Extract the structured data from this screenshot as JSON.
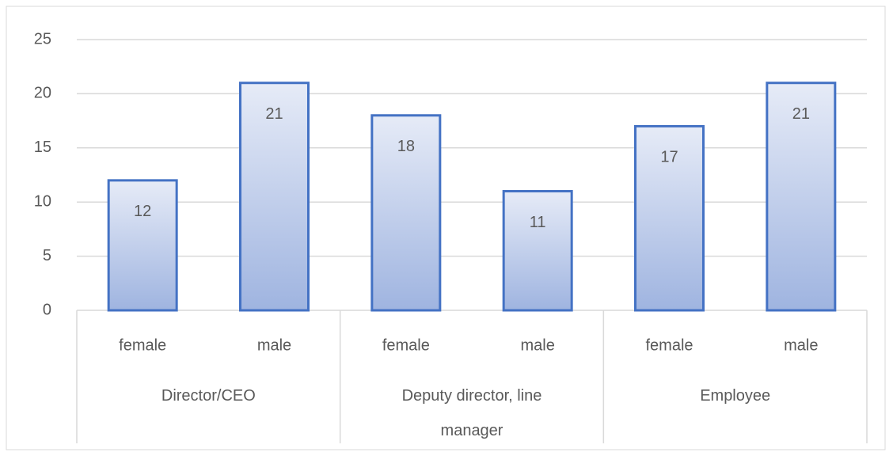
{
  "chart_data": {
    "type": "bar",
    "categories": [
      "female",
      "male",
      "female",
      "male",
      "female",
      "male"
    ],
    "groups": [
      "Director/CEO",
      "Deputy director, line manager",
      "Employee"
    ],
    "values": [
      12,
      21,
      18,
      11,
      17,
      21
    ],
    "color": "#4472c4",
    "ylim": [
      0,
      25
    ],
    "yticks": [
      0,
      5,
      10,
      15,
      20,
      25
    ],
    "grid": true
  }
}
